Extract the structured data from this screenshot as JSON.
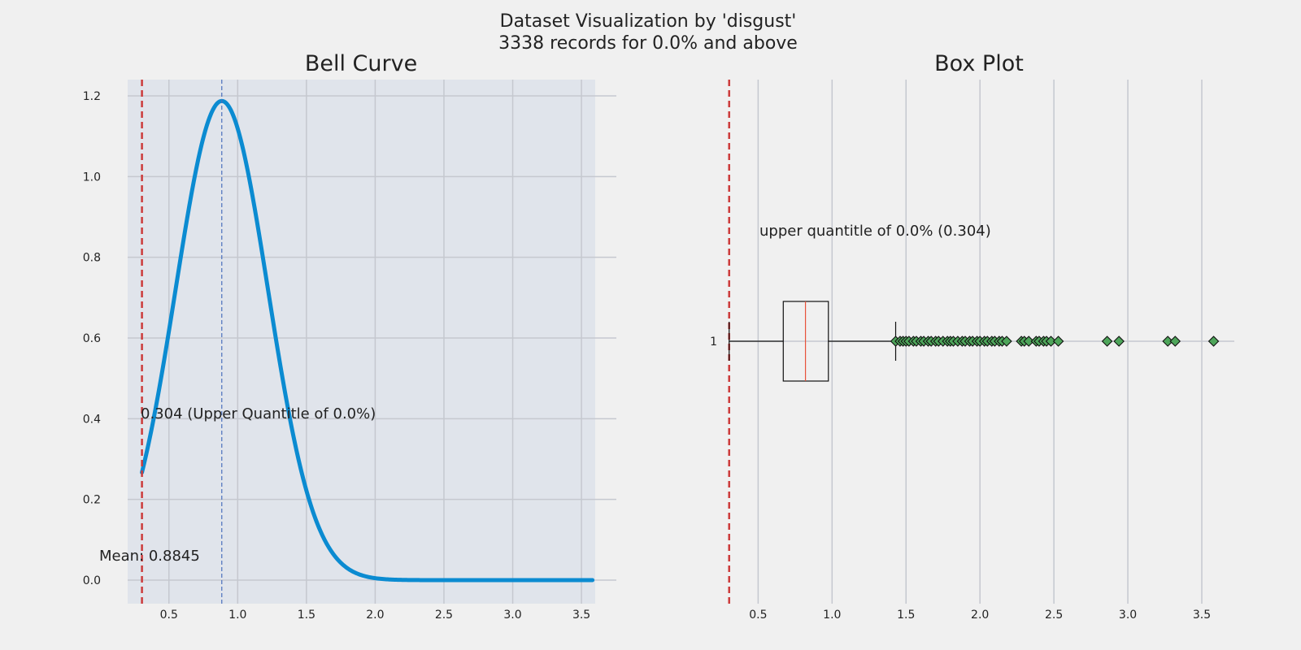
{
  "figure": {
    "title_line1": "Dataset Visualization by 'disgust'",
    "title_line2": "3338 records for 0.0% and above"
  },
  "colors": {
    "background": "#f0f0f0",
    "plot_bg": "#e0e4eb",
    "grid": "#c5c8cf",
    "curve": "#0b8bd1",
    "mean_line": "#4a6fbd",
    "quantile_line": "#cc3b3b",
    "median": "#e8523a",
    "flier_fill": "#4ea55a"
  },
  "chart_data": [
    {
      "type": "line",
      "title": "Bell Curve",
      "xlim": [
        0.2,
        3.6
      ],
      "ylim": [
        -0.05,
        1.24
      ],
      "x_ticks": [
        "0.5",
        "1.0",
        "1.5",
        "2.0",
        "2.5",
        "3.0",
        "3.5"
      ],
      "y_ticks": [
        "0.0",
        "0.2",
        "0.4",
        "0.6",
        "0.8",
        "1.0",
        "1.2"
      ],
      "grid": true,
      "series": [
        {
          "distribution": "normal",
          "mean": 0.8845,
          "std": 0.336,
          "x_range": [
            0.304,
            3.58
          ]
        }
      ],
      "mean": 0.8845,
      "quantile": 0.304,
      "mean_label": "Mean: 0.8845",
      "quantile_label": "0.304 (Upper Quantitle of 0.0%)"
    },
    {
      "type": "box",
      "title": "Box Plot",
      "xlim": [
        0.3,
        3.72
      ],
      "x_ticks": [
        "0.5",
        "1.0",
        "1.5",
        "2.0",
        "2.5",
        "3.0",
        "3.5"
      ],
      "y_tick": "1",
      "grid": true,
      "quantile": 0.304,
      "quantile_label": "upper quantitle of 0.0% (0.304)",
      "box": {
        "whisker_low": 0.304,
        "q1": 0.67,
        "median": 0.82,
        "q3": 0.975,
        "whisker_high": 1.43
      },
      "fliers": [
        1.43,
        1.46,
        1.48,
        1.5,
        1.52,
        1.55,
        1.57,
        1.6,
        1.62,
        1.65,
        1.67,
        1.7,
        1.72,
        1.75,
        1.78,
        1.8,
        1.82,
        1.85,
        1.88,
        1.9,
        1.93,
        1.95,
        1.98,
        2.0,
        2.03,
        2.05,
        2.08,
        2.1,
        2.13,
        2.15,
        2.18,
        2.28,
        2.3,
        2.33,
        2.38,
        2.4,
        2.43,
        2.45,
        2.48,
        2.53,
        2.86,
        2.94,
        3.27,
        3.32,
        3.58
      ]
    }
  ]
}
